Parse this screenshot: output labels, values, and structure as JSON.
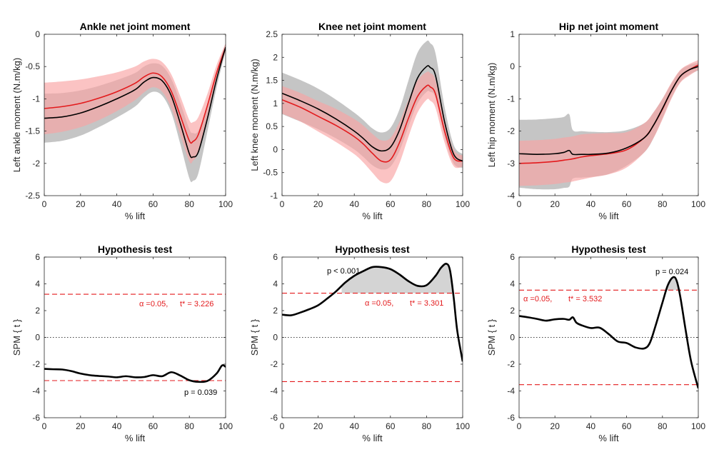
{
  "chart_data": [
    {
      "type": "line",
      "panel": "ankle-moment",
      "title": "Ankle net joint moment",
      "xlabel": "% lift",
      "ylabel": "Left ankle moment (N.m/kg)",
      "xlim": [
        0,
        100
      ],
      "ylim": [
        -2.5,
        0
      ],
      "xticks": [
        0,
        20,
        40,
        60,
        80,
        100
      ],
      "yticks": [
        -2.5,
        -2,
        -1.5,
        -1,
        -0.5,
        0
      ],
      "ytick_labels": [
        "-2.5",
        "-2",
        "-1.5",
        "-1",
        "-0.5",
        "0"
      ],
      "x": [
        0,
        10,
        20,
        30,
        40,
        50,
        55,
        60,
        65,
        70,
        75,
        80,
        82,
        85,
        90,
        95,
        100
      ],
      "series": [
        {
          "name": "black-mean",
          "color": "#000000",
          "band_color": "#a6a6a6",
          "values": [
            -1.3,
            -1.28,
            -1.22,
            -1.12,
            -1.0,
            -0.86,
            -0.74,
            -0.67,
            -0.72,
            -0.95,
            -1.38,
            -1.85,
            -1.9,
            -1.82,
            -1.3,
            -0.7,
            -0.2
          ],
          "sd": [
            0.38,
            0.37,
            0.35,
            0.32,
            0.29,
            0.26,
            0.24,
            0.22,
            0.23,
            0.26,
            0.32,
            0.38,
            0.37,
            0.33,
            0.2,
            0.13,
            0.06
          ]
        },
        {
          "name": "red-mean",
          "color": "#e31a1c",
          "band_color": "#f9a3a3",
          "values": [
            -1.15,
            -1.12,
            -1.07,
            -0.99,
            -0.89,
            -0.76,
            -0.66,
            -0.6,
            -0.66,
            -0.88,
            -1.26,
            -1.65,
            -1.66,
            -1.55,
            -1.1,
            -0.6,
            -0.2
          ],
          "sd": [
            0.4,
            0.39,
            0.37,
            0.34,
            0.3,
            0.26,
            0.24,
            0.22,
            0.23,
            0.26,
            0.3,
            0.32,
            0.3,
            0.27,
            0.18,
            0.12,
            0.06
          ]
        }
      ]
    },
    {
      "type": "line",
      "panel": "knee-moment",
      "title": "Knee net joint moment",
      "xlabel": "% lift",
      "ylabel": "Left knee moment (N.m/kg)",
      "xlim": [
        0,
        100
      ],
      "ylim": [
        -1,
        2.5
      ],
      "xticks": [
        0,
        20,
        40,
        60,
        80,
        100
      ],
      "yticks": [
        -1,
        -0.5,
        0,
        0.5,
        1,
        1.5,
        2,
        2.5
      ],
      "ytick_labels": [
        "-1",
        "-0.5",
        "0",
        "0.5",
        "1",
        "1.5",
        "2",
        "2.5"
      ],
      "x": [
        0,
        10,
        20,
        30,
        40,
        45,
        50,
        55,
        60,
        65,
        70,
        75,
        80,
        82,
        85,
        90,
        95,
        100
      ],
      "series": [
        {
          "name": "black-mean",
          "color": "#000000",
          "band_color": "#a6a6a6",
          "values": [
            1.22,
            1.06,
            0.88,
            0.66,
            0.4,
            0.24,
            0.06,
            -0.03,
            0.05,
            0.42,
            1.0,
            1.55,
            1.8,
            1.78,
            1.6,
            0.6,
            -0.1,
            -0.25
          ],
          "sd": [
            0.45,
            0.45,
            0.44,
            0.42,
            0.4,
            0.4,
            0.4,
            0.4,
            0.42,
            0.45,
            0.5,
            0.55,
            0.55,
            0.53,
            0.48,
            0.32,
            0.2,
            0.15
          ]
        },
        {
          "name": "red-mean",
          "color": "#e31a1c",
          "band_color": "#f9a3a3",
          "values": [
            1.08,
            0.92,
            0.72,
            0.52,
            0.28,
            0.12,
            -0.08,
            -0.25,
            -0.22,
            0.15,
            0.68,
            1.15,
            1.38,
            1.36,
            1.2,
            0.4,
            -0.18,
            -0.25
          ],
          "sd": [
            0.3,
            0.31,
            0.33,
            0.36,
            0.38,
            0.4,
            0.42,
            0.45,
            0.47,
            0.45,
            0.4,
            0.35,
            0.3,
            0.3,
            0.3,
            0.25,
            0.18,
            0.12
          ]
        }
      ]
    },
    {
      "type": "line",
      "panel": "hip-moment",
      "title": "Hip net joint moment",
      "xlabel": "% lift",
      "ylabel": "Left hip moment (N.m/kg)",
      "xlim": [
        0,
        100
      ],
      "ylim": [
        -4,
        1
      ],
      "xticks": [
        0,
        20,
        40,
        60,
        80,
        100
      ],
      "yticks": [
        -4,
        -3,
        -2,
        -1,
        0,
        1
      ],
      "ytick_labels": [
        "-4",
        "-3",
        "-2",
        "-1",
        "0",
        "1"
      ],
      "x": [
        0,
        10,
        20,
        25,
        28,
        30,
        35,
        40,
        50,
        60,
        70,
        75,
        80,
        85,
        90,
        95,
        100
      ],
      "series": [
        {
          "name": "black-mean",
          "color": "#000000",
          "band_color": "#a6a6a6",
          "values": [
            -2.7,
            -2.72,
            -2.7,
            -2.66,
            -2.6,
            -2.72,
            -2.72,
            -2.72,
            -2.68,
            -2.52,
            -2.2,
            -1.82,
            -1.3,
            -0.75,
            -0.3,
            -0.1,
            0.0
          ],
          "sd": [
            1.05,
            1.08,
            1.1,
            1.1,
            1.12,
            0.75,
            0.72,
            0.7,
            0.65,
            0.55,
            0.45,
            0.4,
            0.3,
            0.22,
            0.18,
            0.15,
            0.12
          ]
        },
        {
          "name": "red-mean",
          "color": "#e31a1c",
          "band_color": "#f9a3a3",
          "values": [
            -3.0,
            -2.98,
            -2.94,
            -2.9,
            -2.88,
            -2.86,
            -2.8,
            -2.76,
            -2.7,
            -2.58,
            -2.2,
            -1.82,
            -1.32,
            -0.75,
            -0.3,
            -0.1,
            0.05
          ],
          "sd": [
            0.7,
            0.7,
            0.7,
            0.7,
            0.7,
            0.7,
            0.7,
            0.68,
            0.64,
            0.55,
            0.45,
            0.4,
            0.32,
            0.25,
            0.2,
            0.18,
            0.15
          ]
        }
      ]
    },
    {
      "type": "line",
      "panel": "ankle-spm",
      "title": "Hypothesis test",
      "xlabel": "% lift",
      "ylabel": "SPM { t }",
      "xlim": [
        0,
        100
      ],
      "ylim": [
        -6,
        6
      ],
      "xticks": [
        0,
        20,
        40,
        60,
        80,
        100
      ],
      "yticks": [
        -6,
        -4,
        -2,
        0,
        2,
        4,
        6
      ],
      "ytick_labels": [
        "-6",
        "-4",
        "-2",
        "0",
        "2",
        "4",
        "6"
      ],
      "threshold": 3.226,
      "alpha_label": "α  =0.05,",
      "tstar_label": "t* = 3.226",
      "p_label": "p = 0.039",
      "supra_regions": [
        [
          75,
          93
        ]
      ],
      "x": [
        0,
        5,
        10,
        15,
        20,
        25,
        30,
        35,
        40,
        45,
        50,
        55,
        60,
        65,
        70,
        75,
        80,
        85,
        90,
        95,
        98,
        100
      ],
      "series": [
        {
          "name": "spm-t",
          "color": "#000000",
          "values": [
            -2.35,
            -2.38,
            -2.4,
            -2.52,
            -2.7,
            -2.82,
            -2.88,
            -2.92,
            -2.98,
            -2.9,
            -2.98,
            -2.96,
            -2.82,
            -2.9,
            -2.6,
            -2.85,
            -3.2,
            -3.32,
            -3.25,
            -2.7,
            -2.1,
            -2.2
          ]
        }
      ]
    },
    {
      "type": "line",
      "panel": "knee-spm",
      "title": "Hypothesis test",
      "xlabel": "% lift",
      "ylabel": "SPM { t }",
      "xlim": [
        0,
        100
      ],
      "ylim": [
        -6,
        6
      ],
      "xticks": [
        0,
        20,
        40,
        60,
        80,
        100
      ],
      "yticks": [
        -6,
        -4,
        -2,
        0,
        2,
        4,
        6
      ],
      "ytick_labels": [
        "-6",
        "-4",
        "-2",
        "0",
        "2",
        "4",
        "6"
      ],
      "threshold": 3.301,
      "alpha_label": "α  =0.05,",
      "tstar_label": "t* = 3.301",
      "p_label": "p < 0.001",
      "supra_regions": [
        [
          33,
          95
        ]
      ],
      "x": [
        0,
        5,
        10,
        15,
        20,
        25,
        30,
        35,
        40,
        45,
        50,
        55,
        60,
        65,
        70,
        75,
        80,
        85,
        88,
        91,
        93,
        95,
        97,
        100
      ],
      "series": [
        {
          "name": "spm-t",
          "color": "#000000",
          "values": [
            1.7,
            1.65,
            1.85,
            2.1,
            2.4,
            2.9,
            3.45,
            4.1,
            4.6,
            4.95,
            5.25,
            5.25,
            5.1,
            4.7,
            4.2,
            3.85,
            3.9,
            4.6,
            5.2,
            5.5,
            5.0,
            3.0,
            0.5,
            -1.8
          ]
        }
      ]
    },
    {
      "type": "line",
      "panel": "hip-spm",
      "title": "Hypothesis test",
      "xlabel": "% lift",
      "ylabel": "SPM { t }",
      "xlim": [
        0,
        100
      ],
      "ylim": [
        -6,
        6
      ],
      "xticks": [
        0,
        20,
        40,
        60,
        80,
        100
      ],
      "yticks": [
        -6,
        -4,
        -2,
        0,
        2,
        4,
        6
      ],
      "ytick_labels": [
        "-6",
        "-4",
        "-2",
        "0",
        "2",
        "4",
        "6"
      ],
      "threshold": 3.532,
      "alpha_label": "α  =0.05,",
      "tstar_label": "t* = 3.532",
      "p_label": "p = 0.024",
      "supra_regions": [
        [
          82,
          91
        ]
      ],
      "x": [
        0,
        5,
        10,
        15,
        20,
        25,
        28,
        30,
        32,
        35,
        40,
        45,
        50,
        55,
        60,
        65,
        70,
        73,
        76,
        80,
        83,
        86,
        88,
        90,
        93,
        96,
        100
      ],
      "series": [
        {
          "name": "spm-t",
          "color": "#000000",
          "values": [
            1.6,
            1.5,
            1.38,
            1.25,
            1.35,
            1.38,
            1.32,
            1.5,
            1.1,
            0.9,
            0.7,
            0.72,
            0.25,
            -0.3,
            -0.42,
            -0.75,
            -0.82,
            -0.4,
            0.8,
            2.6,
            3.9,
            4.5,
            4.2,
            3.0,
            0.5,
            -1.8,
            -3.8
          ]
        }
      ]
    }
  ]
}
